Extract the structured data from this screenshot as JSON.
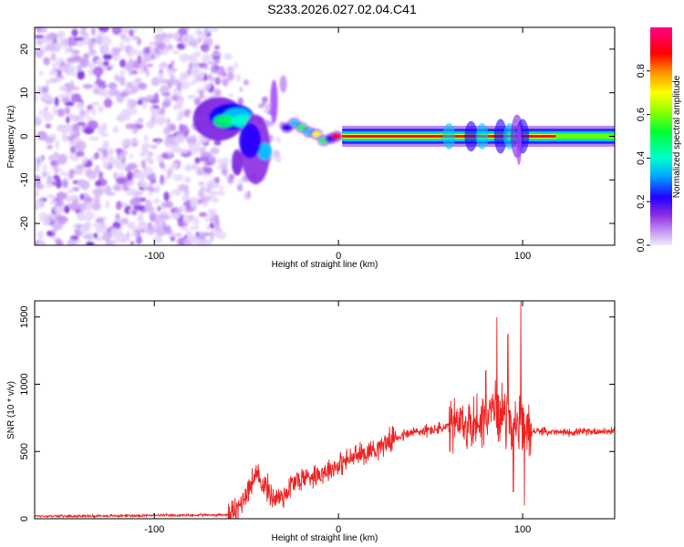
{
  "title": "S233.2026.027.02.04.C41",
  "chart_data": [
    {
      "type": "heatmap",
      "xlabel": "Height of straight line (km)",
      "ylabel": "Frequency (Hz)",
      "xlim": [
        -165,
        150
      ],
      "ylim": [
        -25,
        25
      ],
      "xticks": [
        -100,
        0,
        100
      ],
      "yticks": [
        -20,
        -10,
        0,
        10,
        20
      ],
      "colorbar": {
        "label": "Normalized spectral amplitude",
        "range": [
          0,
          1
        ],
        "ticks": [
          0,
          0.2,
          0.4,
          0.6,
          0.8
        ],
        "colors": [
          "#f2eafc",
          "#d9b7f7",
          "#a64dff",
          "#7a1fe0",
          "#0000ff",
          "#00ccff",
          "#00ff66",
          "#aaff00",
          "#ffff00",
          "#ff6600",
          "#ff0000",
          "#ff0080"
        ]
      },
      "regions": [
        {
          "name": "noise",
          "x_range": [
            -165,
            -65
          ],
          "f_range": [
            -25,
            25
          ],
          "amplitude": 0.05
        },
        {
          "name": "onset",
          "x_range": [
            -65,
            -30
          ],
          "f_range": [
            -6,
            6
          ],
          "amplitude": 0.3
        },
        {
          "name": "signal",
          "x_range": [
            -10,
            150
          ],
          "f_center": 0,
          "amplitude": 0.95
        }
      ]
    },
    {
      "type": "line",
      "xlabel": "Height of straight line (km)",
      "ylabel": "SNR (10 * v/v)",
      "xlim": [
        -165,
        150
      ],
      "ylim": [
        0,
        1620
      ],
      "xticks": [
        -100,
        0,
        100
      ],
      "yticks": [
        0,
        500,
        1000,
        1500
      ],
      "series": [
        {
          "name": "SNR",
          "color": "#ee2222",
          "x": [
            -165,
            -140,
            -120,
            -100,
            -80,
            -60,
            -55,
            -50,
            -45,
            -40,
            -35,
            -30,
            -25,
            -20,
            -10,
            0,
            10,
            20,
            30,
            40,
            50,
            60,
            70,
            75,
            80,
            85,
            90,
            95,
            100,
            105,
            110,
            120,
            130,
            140,
            150
          ],
          "y": [
            20,
            20,
            22,
            25,
            25,
            30,
            60,
            200,
            320,
            250,
            150,
            170,
            260,
            300,
            340,
            400,
            470,
            520,
            600,
            640,
            660,
            680,
            700,
            720,
            760,
            820,
            780,
            700,
            660,
            650,
            650,
            640,
            645,
            650,
            650
          ],
          "spikes": [
            {
              "x": 86,
              "y": 1500
            },
            {
              "x": 92,
              "y": 1370
            },
            {
              "x": 99,
              "y": 1620
            },
            {
              "x": 101,
              "y": 100
            },
            {
              "x": 95,
              "y": 200
            },
            {
              "x": 80,
              "y": 1100
            }
          ],
          "noise_amplitude": [
            {
              "x_range": [
                -165,
                -60
              ],
              "amp": 12
            },
            {
              "x_range": [
                -60,
                -20
              ],
              "amp": 130
            },
            {
              "x_range": [
                -20,
                30
              ],
              "amp": 110
            },
            {
              "x_range": [
                30,
                60
              ],
              "amp": 60
            },
            {
              "x_range": [
                60,
                105
              ],
              "amp": 260
            },
            {
              "x_range": [
                105,
                150
              ],
              "amp": 35
            }
          ]
        }
      ]
    }
  ]
}
